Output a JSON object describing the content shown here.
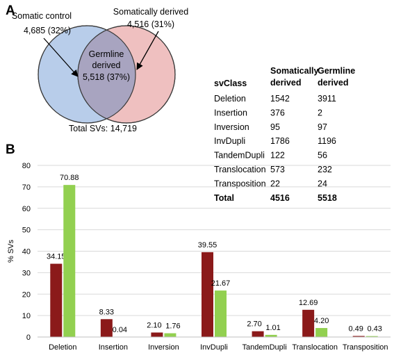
{
  "panels": {
    "a": "A",
    "b": "B"
  },
  "venn": {
    "left_label": "Somatic control",
    "left_value": "4,685 (32%)",
    "right_label": "Somatically derived",
    "right_value": "4,516 (31%)",
    "center_line1": "Germline",
    "center_line2": "derived",
    "center_value": "5,518 (37%)",
    "total": "Total SVs: 14,719",
    "colors": {
      "left": "#b8cdea",
      "right": "#efc0c0",
      "overlap": "#a8a4c0",
      "stroke": "#3a3a3a"
    }
  },
  "table": {
    "headers": [
      "svClass",
      "Somatically derived",
      "Germline derived"
    ],
    "header_lines": [
      [
        "svClass"
      ],
      [
        "Somatically",
        "derived"
      ],
      [
        "Germline",
        "derived"
      ]
    ],
    "rows": [
      [
        "Deletion",
        "1542",
        "3911"
      ],
      [
        "Insertion",
        "376",
        "2"
      ],
      [
        "Inversion",
        "95",
        "97"
      ],
      [
        "InvDupli",
        "1786",
        "1196"
      ],
      [
        "TandemDupli",
        "122",
        "56"
      ],
      [
        "Translocation",
        "573",
        "232"
      ],
      [
        "Transposition",
        "22",
        "24"
      ]
    ],
    "total_row": [
      "Total",
      "4516",
      "5518"
    ]
  },
  "chart_data": {
    "type": "bar",
    "categories": [
      "Deletion",
      "Insertion",
      "Inversion",
      "InvDupli",
      "TandemDupli",
      "Translocation",
      "Transposition"
    ],
    "series": [
      {
        "values": [
          34.15,
          8.33,
          2.1,
          39.55,
          2.7,
          12.69,
          0.49
        ],
        "labels": [
          "34.15",
          "8.33",
          "2.10",
          "39.55",
          "2.70",
          "12.69",
          "0.49"
        ],
        "color": "#8b1a1a"
      },
      {
        "values": [
          70.88,
          0.04,
          1.76,
          21.67,
          1.01,
          4.2,
          0.43
        ],
        "labels": [
          "70.88",
          "0.04",
          "1.76",
          "21.67",
          "1.01",
          "4.20",
          "0.43"
        ],
        "color": "#92d050"
      }
    ],
    "title": "",
    "xlabel": "",
    "ylabel": "% SVs",
    "ylim": [
      0,
      80
    ],
    "yticks": [
      "0",
      "10",
      "20",
      "30",
      "40",
      "50",
      "60",
      "70",
      "80"
    ],
    "grid": true,
    "grid_color": "#d9d9d9",
    "legend": "none"
  }
}
